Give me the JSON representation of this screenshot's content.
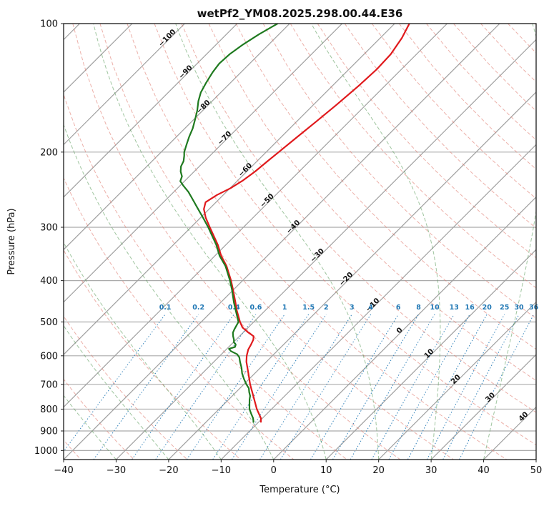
{
  "figure": {
    "title": "wetPf2_YM08.2025.298.00.44.E36",
    "x_axis_label": "Temperature (°C)",
    "y_axis_label": "Pressure (hPa)"
  },
  "chart_data": {
    "type": "skewt_log_p",
    "x_axis": {
      "label": "Temperature (°C)",
      "min": -40,
      "max": 50,
      "ticks": [
        -40,
        -30,
        -20,
        -10,
        0,
        10,
        20,
        30,
        40,
        50
      ]
    },
    "y_axis": {
      "label": "Pressure (hPa)",
      "min": 100,
      "max": 1050,
      "scale": "log",
      "ticks": [
        100,
        200,
        300,
        400,
        500,
        600,
        700,
        800,
        900,
        1000
      ]
    },
    "skew_degrees": 45,
    "grid": {
      "color": "#ababab"
    },
    "isotherms": {
      "min": -150,
      "max": 50,
      "step": 10,
      "color": "#9f9f9f"
    },
    "isotherm_labels": {
      "colors": {
        "negative": "#1f77b4",
        "zero": "#7f7f7f",
        "positive": "#d62728"
      },
      "items": [
        {
          "t": -100,
          "p": 109
        },
        {
          "t": -90,
          "p": 131
        },
        {
          "t": -80,
          "p": 158
        },
        {
          "t": -70,
          "p": 187
        },
        {
          "t": -60,
          "p": 222
        },
        {
          "t": -50,
          "p": 262
        },
        {
          "t": -40,
          "p": 302
        },
        {
          "t": -30,
          "p": 352
        },
        {
          "t": -20,
          "p": 400
        },
        {
          "t": -10,
          "p": 460
        },
        {
          "t": 0,
          "p": 528
        },
        {
          "t": 10,
          "p": 598
        },
        {
          "t": 20,
          "p": 687
        },
        {
          "t": 30,
          "p": 757
        },
        {
          "t": 40,
          "p": 840
        }
      ]
    },
    "dry_adiabats": {
      "theta_min": -40,
      "theta_max": 190,
      "step": 10,
      "color": "#e07b6f",
      "opacity": 0.6
    },
    "moist_adiabats": {
      "t_start_min": -40,
      "t_start_max": 50,
      "step": 10,
      "color": "#5f9e5f",
      "opacity": 0.6
    },
    "mixing_ratio_lines": {
      "values_g_kg": [
        0.1,
        0.2,
        0.4,
        0.6,
        1,
        1.5,
        2,
        3,
        4,
        6,
        8,
        10,
        13,
        16,
        20,
        25,
        30,
        36
      ],
      "p_bottom": 1050,
      "p_top": 480,
      "color": "#1f77b4",
      "label_color": "#1f77b4"
    },
    "series": [
      {
        "name": "temperature",
        "color": "#e0191c",
        "width": 2.2,
        "points_p_t": [
          [
            857,
            -9.6
          ],
          [
            840,
            -10.3
          ],
          [
            800,
            -12.8
          ],
          [
            750,
            -15.7
          ],
          [
            700,
            -18.8
          ],
          [
            660,
            -21.2
          ],
          [
            620,
            -23.8
          ],
          [
            600,
            -24.9
          ],
          [
            580,
            -25.8
          ],
          [
            565,
            -26.2
          ],
          [
            550,
            -26.7
          ],
          [
            540,
            -27.3
          ],
          [
            528,
            -29.2
          ],
          [
            515,
            -31.1
          ],
          [
            500,
            -32.6
          ],
          [
            470,
            -35.4
          ],
          [
            450,
            -37.2
          ],
          [
            420,
            -40.1
          ],
          [
            400,
            -42.2
          ],
          [
            370,
            -45.8
          ],
          [
            350,
            -48.8
          ],
          [
            330,
            -51.5
          ],
          [
            300,
            -56.4
          ],
          [
            285,
            -59.0
          ],
          [
            272,
            -61.0
          ],
          [
            262,
            -62.0
          ],
          [
            252,
            -61.2
          ],
          [
            243,
            -59.9
          ],
          [
            233,
            -59.0
          ],
          [
            222,
            -58.4
          ],
          [
            210,
            -58.0
          ],
          [
            200,
            -57.6
          ],
          [
            185,
            -57.0
          ],
          [
            170,
            -56.3
          ],
          [
            155,
            -55.6
          ],
          [
            140,
            -55.0
          ],
          [
            128,
            -54.7
          ],
          [
            118,
            -54.9
          ],
          [
            108,
            -55.9
          ],
          [
            100,
            -57.2
          ]
        ]
      },
      {
        "name": "dewpoint",
        "color": "#1f7a1f",
        "width": 2.2,
        "points_p_t": [
          [
            857,
            -11.0
          ],
          [
            840,
            -11.8
          ],
          [
            820,
            -13.0
          ],
          [
            800,
            -14.2
          ],
          [
            780,
            -15.1
          ],
          [
            760,
            -16.0
          ],
          [
            745,
            -16.6
          ],
          [
            730,
            -17.5
          ],
          [
            715,
            -18.3
          ],
          [
            700,
            -19.5
          ],
          [
            680,
            -21.0
          ],
          [
            660,
            -22.4
          ],
          [
            640,
            -23.6
          ],
          [
            620,
            -25.0
          ],
          [
            605,
            -26.0
          ],
          [
            595,
            -27.0
          ],
          [
            585,
            -28.8
          ],
          [
            578,
            -29.6
          ],
          [
            572,
            -28.8
          ],
          [
            565,
            -29.1
          ],
          [
            558,
            -29.9
          ],
          [
            550,
            -30.4
          ],
          [
            540,
            -31.2
          ],
          [
            530,
            -31.9
          ],
          [
            520,
            -32.3
          ],
          [
            510,
            -32.6
          ],
          [
            500,
            -32.9
          ],
          [
            470,
            -35.6
          ],
          [
            450,
            -37.5
          ],
          [
            420,
            -40.3
          ],
          [
            400,
            -42.4
          ],
          [
            370,
            -46.0
          ],
          [
            350,
            -49.1
          ],
          [
            330,
            -51.8
          ],
          [
            300,
            -56.7
          ],
          [
            285,
            -59.5
          ],
          [
            270,
            -62.5
          ],
          [
            258,
            -65.0
          ],
          [
            248,
            -67.2
          ],
          [
            240,
            -69.3
          ],
          [
            234,
            -70.8
          ],
          [
            228,
            -71.4
          ],
          [
            222,
            -72.6
          ],
          [
            216,
            -73.5
          ],
          [
            210,
            -74.0
          ],
          [
            204,
            -74.9
          ],
          [
            200,
            -75.6
          ],
          [
            192,
            -76.6
          ],
          [
            184,
            -77.6
          ],
          [
            176,
            -78.5
          ],
          [
            168,
            -79.7
          ],
          [
            160,
            -81.0
          ],
          [
            152,
            -82.6
          ],
          [
            145,
            -83.8
          ],
          [
            138,
            -84.6
          ],
          [
            130,
            -85.4
          ],
          [
            124,
            -85.8
          ],
          [
            118,
            -85.6
          ],
          [
            112,
            -84.9
          ],
          [
            106,
            -83.8
          ],
          [
            100,
            -82.3
          ]
        ]
      }
    ]
  }
}
